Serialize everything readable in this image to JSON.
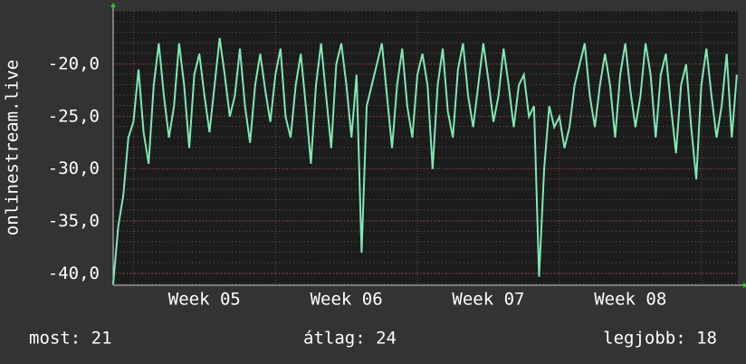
{
  "chart_data": {
    "type": "line",
    "ylabel": "onlinestream.live",
    "series": [
      {
        "name": "onlinestream.live",
        "color": "#7fe8b5",
        "x": [
          0,
          0.25,
          0.5,
          0.75,
          1,
          1.25,
          1.5,
          1.75,
          2,
          2.25,
          2.5,
          2.75,
          3,
          3.25,
          3.5,
          3.75,
          4,
          4.25,
          4.5,
          4.75,
          5,
          5.25,
          5.5,
          5.75,
          6,
          6.25,
          6.5,
          6.75,
          7,
          7.25,
          7.5,
          7.75,
          8,
          8.25,
          8.5,
          8.75,
          9,
          9.25,
          9.5,
          9.75,
          10,
          10.25,
          10.5,
          10.75,
          11,
          11.25,
          11.5,
          11.75,
          12,
          12.25,
          12.5,
          12.75,
          13,
          13.25,
          13.5,
          13.75,
          14,
          14.25,
          14.5,
          14.75,
          15,
          15.25,
          15.5,
          15.75,
          16,
          16.25,
          16.5,
          16.75,
          17,
          17.25,
          17.5,
          17.75,
          18,
          18.25,
          18.5,
          18.75,
          19,
          19.25,
          19.5,
          19.75,
          20,
          20.25,
          20.5,
          20.75,
          21,
          21.25,
          21.5,
          21.75,
          22,
          22.25,
          22.5,
          22.75,
          23,
          23.25,
          23.5,
          23.75,
          24,
          24.25,
          24.5,
          24.75,
          25,
          25.25,
          25.5,
          25.75,
          26,
          26.25,
          26.5,
          26.75,
          27,
          27.25,
          27.5,
          27.75,
          28,
          28.25,
          28.5,
          28.75,
          29,
          29.25,
          29.5,
          29.75,
          30,
          30.25,
          30.5,
          30.75
        ],
        "values": [
          -41,
          -35.5,
          -32.5,
          -27,
          -25.5,
          -20.5,
          -26.5,
          -29.5,
          -22,
          -18,
          -23,
          -27,
          -24,
          -18,
          -22,
          -28,
          -21,
          -19,
          -23,
          -26.5,
          -22,
          -17.5,
          -21,
          -25,
          -23,
          -18.5,
          -24,
          -27.5,
          -22,
          -19,
          -22.5,
          -25.5,
          -21,
          -18.5,
          -25,
          -27,
          -22,
          -19,
          -24,
          -29.5,
          -22,
          -18,
          -23,
          -28,
          -20,
          -18,
          -22,
          -27,
          -21,
          -38,
          -24,
          -22,
          -20,
          -18,
          -23,
          -28,
          -22,
          -18.5,
          -24,
          -27,
          -21,
          -19,
          -22,
          -30,
          -22,
          -18.5,
          -24.5,
          -27,
          -20.5,
          -18,
          -23,
          -26,
          -22,
          -18,
          -21.5,
          -25.5,
          -23,
          -18.5,
          -22,
          -26,
          -22,
          -21,
          -25,
          -24,
          -40.3,
          -30,
          -24,
          -26,
          -25,
          -28,
          -26,
          -22,
          -20,
          -18,
          -23,
          -26,
          -22,
          -19,
          -22,
          -27,
          -21,
          -18,
          -22.5,
          -26,
          -23,
          -18,
          -21,
          -27,
          -21,
          -19,
          -24,
          -28.5,
          -22,
          -20,
          -26,
          -31,
          -22,
          -18.5,
          -23,
          -27,
          -24,
          -19,
          -27,
          -21
        ]
      }
    ],
    "xlim": [
      0,
      30.8
    ],
    "xticks": [
      {
        "value": 4.5,
        "label": "Week 05"
      },
      {
        "value": 11.5,
        "label": "Week 06"
      },
      {
        "value": 18.5,
        "label": "Week 07"
      },
      {
        "value": 25.5,
        "label": "Week 08"
      }
    ],
    "xgrid": [
      1,
      8,
      15,
      22,
      29
    ],
    "ylim": [
      -41.1,
      -14.9
    ],
    "yticks": [
      {
        "value": -20,
        "label": "-20,0"
      },
      {
        "value": -25,
        "label": "-25,0"
      },
      {
        "value": -30,
        "label": "-30,0"
      },
      {
        "value": -35,
        "label": "-35,0"
      },
      {
        "value": -40,
        "label": "-40,0"
      }
    ],
    "grid": true,
    "footer": [
      "most: 21",
      "átlag: 24",
      "legjobb: 18"
    ]
  }
}
